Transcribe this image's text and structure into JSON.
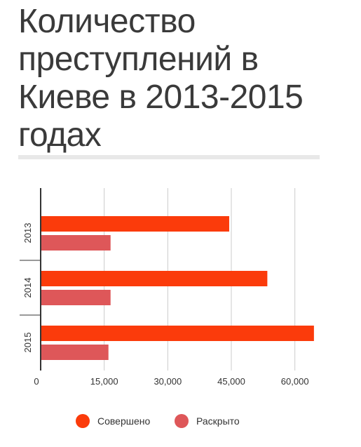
{
  "title": "Количество преступлений в Киеве в 2013-2015 годах",
  "chart_data": {
    "type": "bar",
    "orientation": "horizontal",
    "title": "Количество преступлений в Киеве в 2013-2015 годах",
    "categories": [
      "2013",
      "2014",
      "2015"
    ],
    "series": [
      {
        "name": "Совершено",
        "values": [
          44500,
          53500,
          64500
        ],
        "color": "#fb3b0b"
      },
      {
        "name": "Раскрыто",
        "values": [
          16500,
          16500,
          16000
        ],
        "color": "#de5759"
      }
    ],
    "xlim": [
      0,
      67000
    ],
    "xticks": [
      0,
      15000,
      30000,
      45000,
      60000
    ],
    "xtick_labels": [
      "0",
      "15,000",
      "30,000",
      "45,000",
      "60,000"
    ],
    "grid": true,
    "legend": "bottom"
  }
}
